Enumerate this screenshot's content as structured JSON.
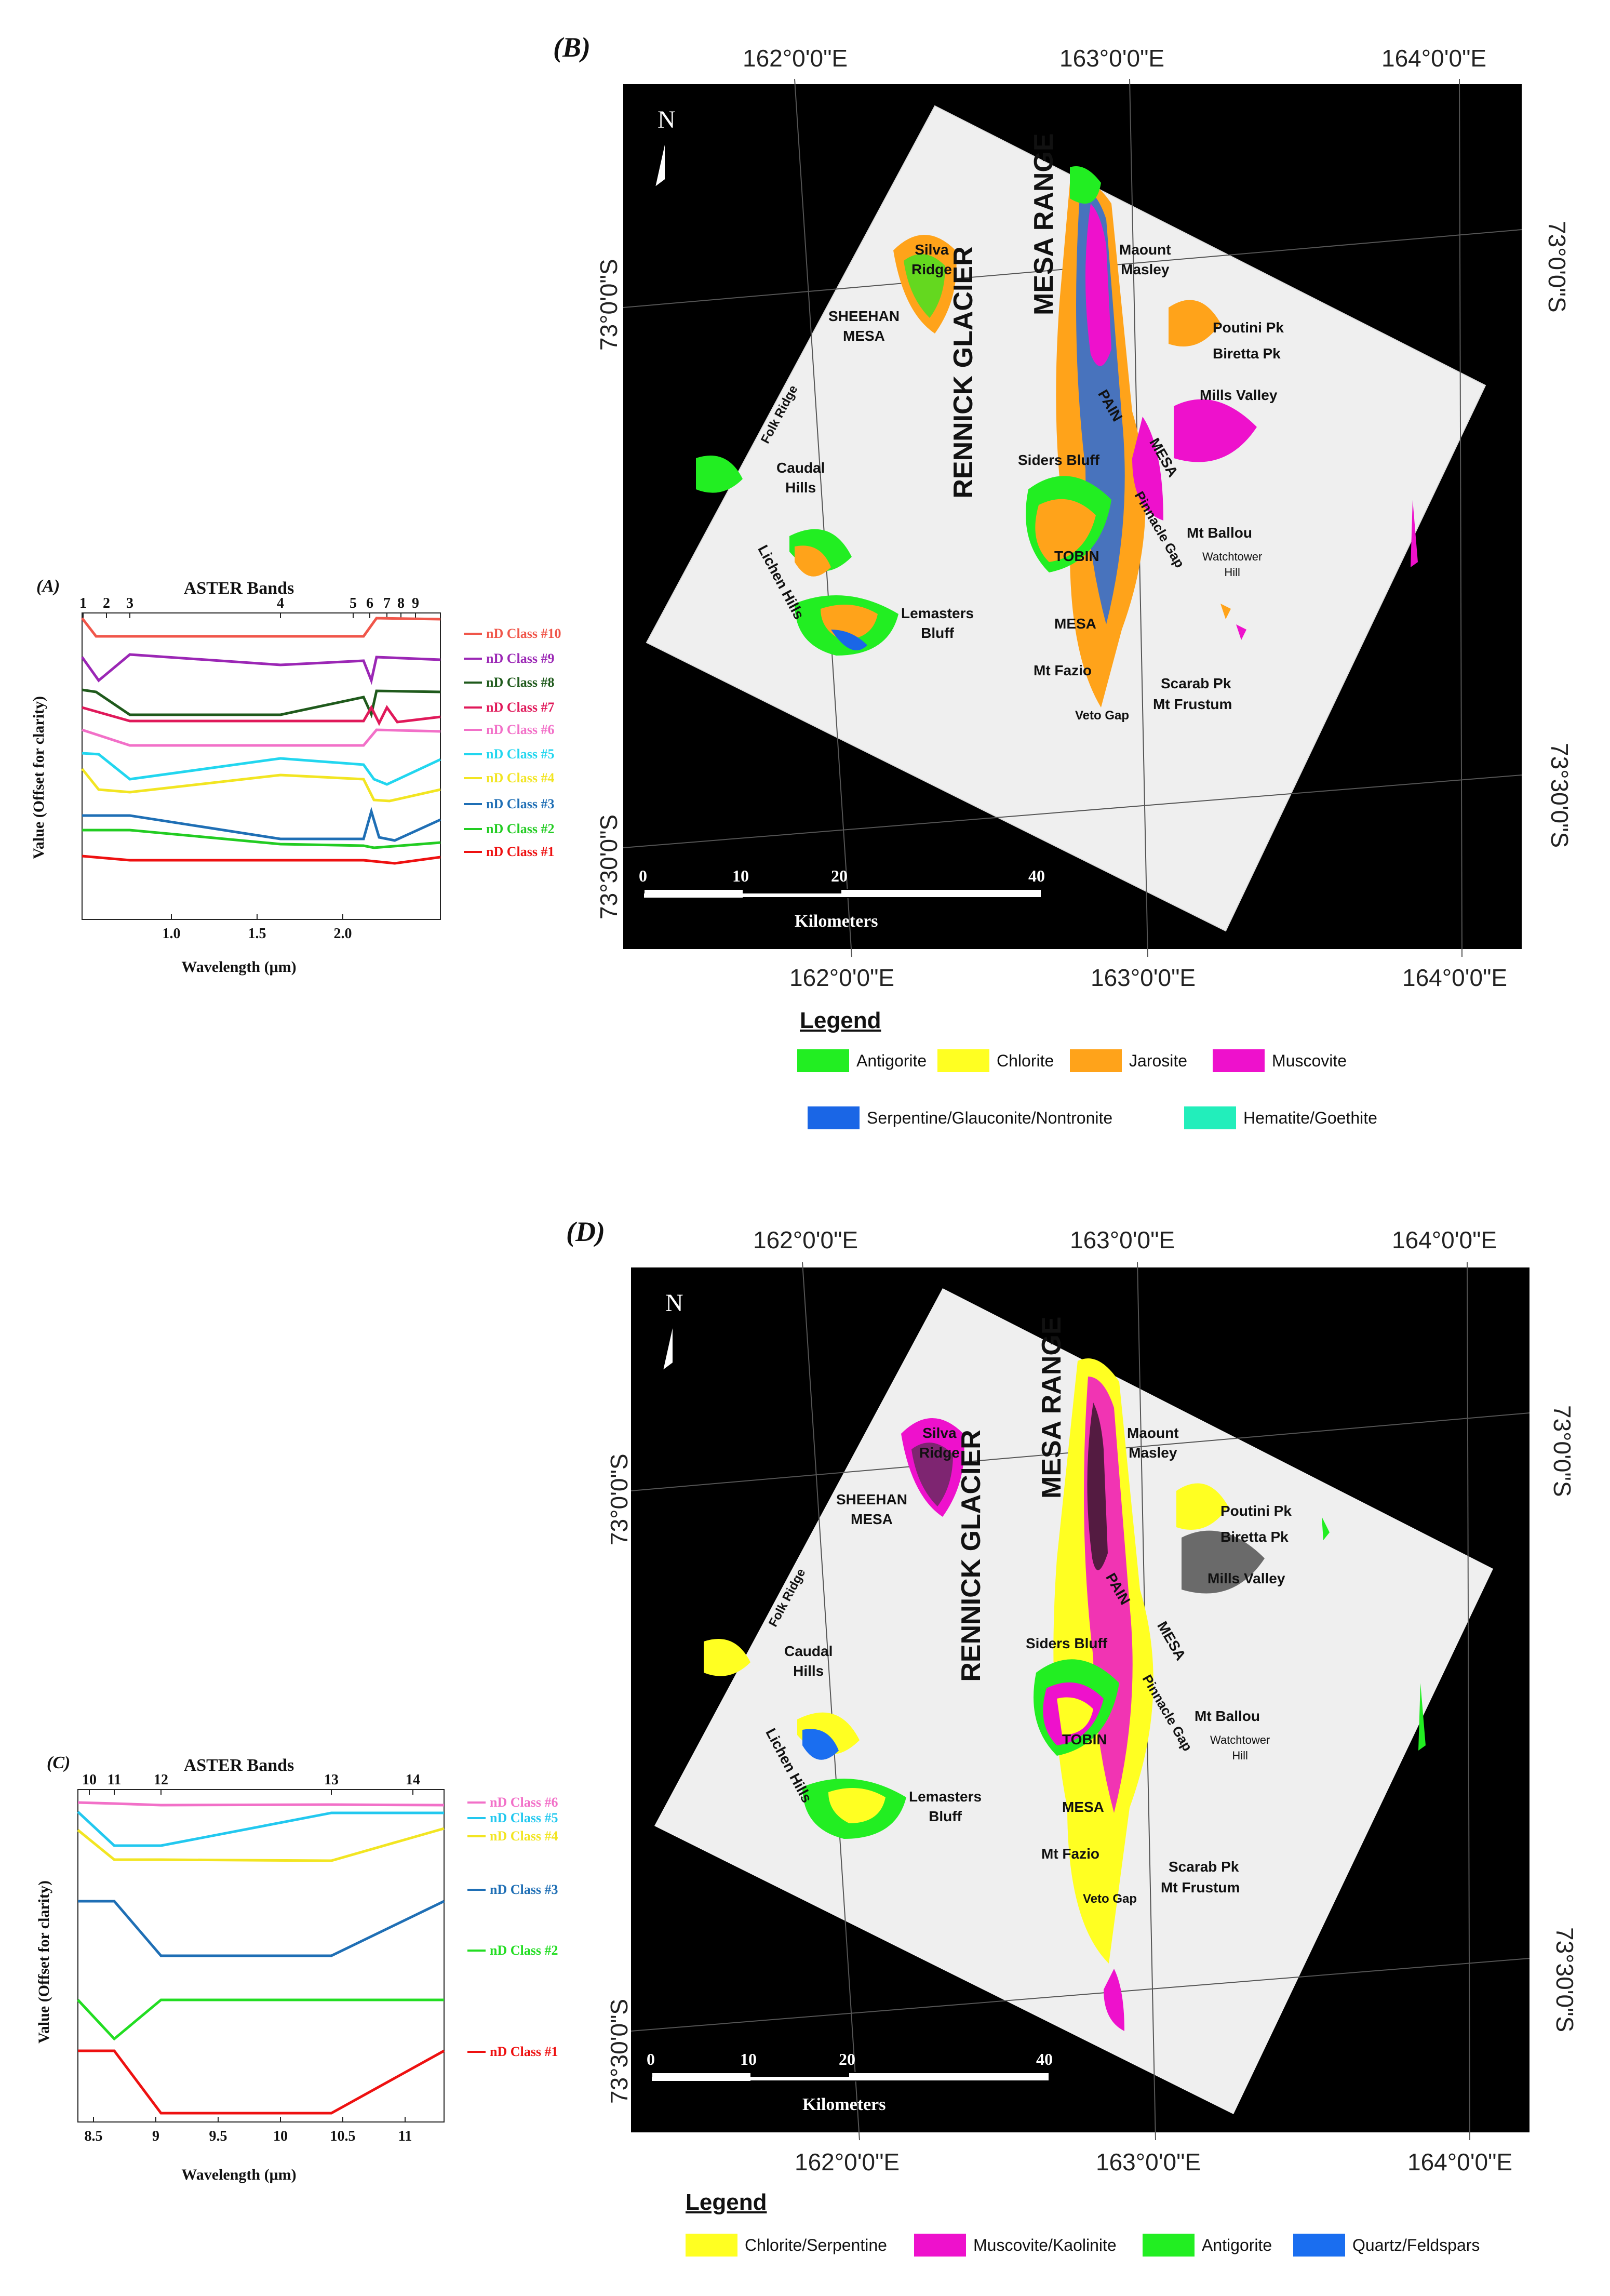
{
  "panels": {
    "A": {
      "label": "(A)",
      "title": "ASTER Bands",
      "band_ticks": [
        "1",
        "2",
        "3",
        "4",
        "5",
        "6",
        "7",
        "8",
        "9"
      ],
      "xlabel": "Wavelength (μm)",
      "ylabel": "Value (Offset for clarity)",
      "x_ticks": [
        "1.0",
        "1.5",
        "2.0"
      ],
      "classes": [
        {
          "label": "nD Class #10",
          "color": "#f0564a"
        },
        {
          "label": "nD Class #9",
          "color": "#9b27b5"
        },
        {
          "label": "nD Class #8",
          "color": "#1f5a1c"
        },
        {
          "label": "nD Class #7",
          "color": "#e0195a"
        },
        {
          "label": "nD Class #6",
          "color": "#f270c8"
        },
        {
          "label": "nD Class #5",
          "color": "#22d6ef"
        },
        {
          "label": "nD Class #4",
          "color": "#f2e522"
        },
        {
          "label": "nD Class #3",
          "color": "#1f6fb5"
        },
        {
          "label": "nD Class #2",
          "color": "#22cc22"
        },
        {
          "label": "nD Class #1",
          "color": "#ee1111"
        }
      ]
    },
    "B": {
      "label": "(B)",
      "top_coords": [
        "162°0'0\"E",
        "163°0'0\"E",
        "164°0'0\"E"
      ],
      "bottom_coords": [
        "162°0'0\"E",
        "163°0'0\"E",
        "164°0'0\"E"
      ],
      "left_coords": [
        "73°0'0\"S",
        "73°30'0\"S"
      ],
      "right_coords": [
        "73°0'0\"S",
        "73°30'0\"S"
      ],
      "north": "N",
      "scale_ticks": [
        "0",
        "10",
        "20",
        "40"
      ],
      "scale_unit": "Kilometers",
      "legend_title": "Legend",
      "legend": [
        {
          "label": "Antigorite",
          "color": "#22ee22"
        },
        {
          "label": "Chlorite",
          "color": "#ffff22"
        },
        {
          "label": "Jarosite",
          "color": "#ffa31a"
        },
        {
          "label": "Muscovite",
          "color": "#ee11cc"
        },
        {
          "label": "Serpentine/Glauconite/Nontronite",
          "color": "#1a66e6"
        },
        {
          "label": "Hematite/Goethite",
          "color": "#22eebb"
        }
      ]
    },
    "C": {
      "label": "(C)",
      "title": "ASTER Bands",
      "band_ticks": [
        "10",
        "11",
        "12",
        "13",
        "14"
      ],
      "xlabel": "Wavelength (μm)",
      "ylabel": "Value (Offset for clarity)",
      "x_ticks": [
        "8.5",
        "9",
        "9.5",
        "10",
        "10.5",
        "11"
      ],
      "classes": [
        {
          "label": "nD Class #6",
          "color": "#f270c8"
        },
        {
          "label": "nD Class #5",
          "color": "#22c8ef"
        },
        {
          "label": "nD Class #4",
          "color": "#f2e522"
        },
        {
          "label": "nD Class #3",
          "color": "#1f6fb5"
        },
        {
          "label": "nD Class #2",
          "color": "#22dd22"
        },
        {
          "label": "nD Class #1",
          "color": "#ee1111"
        }
      ]
    },
    "D": {
      "label": "(D)",
      "top_coords": [
        "162°0'0\"E",
        "163°0'0\"E",
        "164°0'0\"E"
      ],
      "bottom_coords": [
        "162°0'0\"E",
        "163°0'0\"E",
        "164°0'0\"E"
      ],
      "left_coords": [
        "73°0'0\"S",
        "73°30'0\"S"
      ],
      "right_coords": [
        "73°0'0\"S",
        "73°30'0\"S"
      ],
      "north": "N",
      "scale_ticks": [
        "0",
        "10",
        "20",
        "40"
      ],
      "scale_unit": "Kilometers",
      "legend_title": "Legend",
      "legend": [
        {
          "label": "Chlorite/Serpentine",
          "color": "#ffff22"
        },
        {
          "label": "Muscovite/Kaolinite",
          "color": "#ee11cc"
        },
        {
          "label": "Antigorite",
          "color": "#22ee22"
        },
        {
          "label": "Quartz/Feldspars",
          "color": "#1a6ef0"
        }
      ]
    }
  },
  "places": {
    "silva_ridge": "Silva\nRidge",
    "sheehan_mesa": "SHEEHAN\nMESA",
    "rennick_glacier": "RENNICK GLACIER",
    "mesa_range": "MESA RANGE",
    "maount_masley": "Maount\nMasley",
    "poutini_pk": "Poutini Pk",
    "biretta_pk": "Biretta Pk",
    "mills_valley": "Mills Valley",
    "folk_ridge": "Folk Ridge",
    "caudal_hills": "Caudal\nHills",
    "siders_bluff": "Siders Bluff",
    "pain": "PAIN",
    "mesa": "MESA",
    "pinnacle_gap": "Pinnacle Gap",
    "mt_ballou": "Mt Ballou",
    "watchtower_hill": "Watchtower\nHill",
    "tobin": "TOBIN",
    "lichen_hills": "Lichen Hills",
    "lemasters_bluff": "Lemasters\nBluff",
    "mesa2": "MESA",
    "mt_fazio": "Mt Fazio",
    "scarab_pk": "Scarab Pk",
    "mt_frustum": "Mt Frustum",
    "veto_gap": "Veto Gap"
  }
}
